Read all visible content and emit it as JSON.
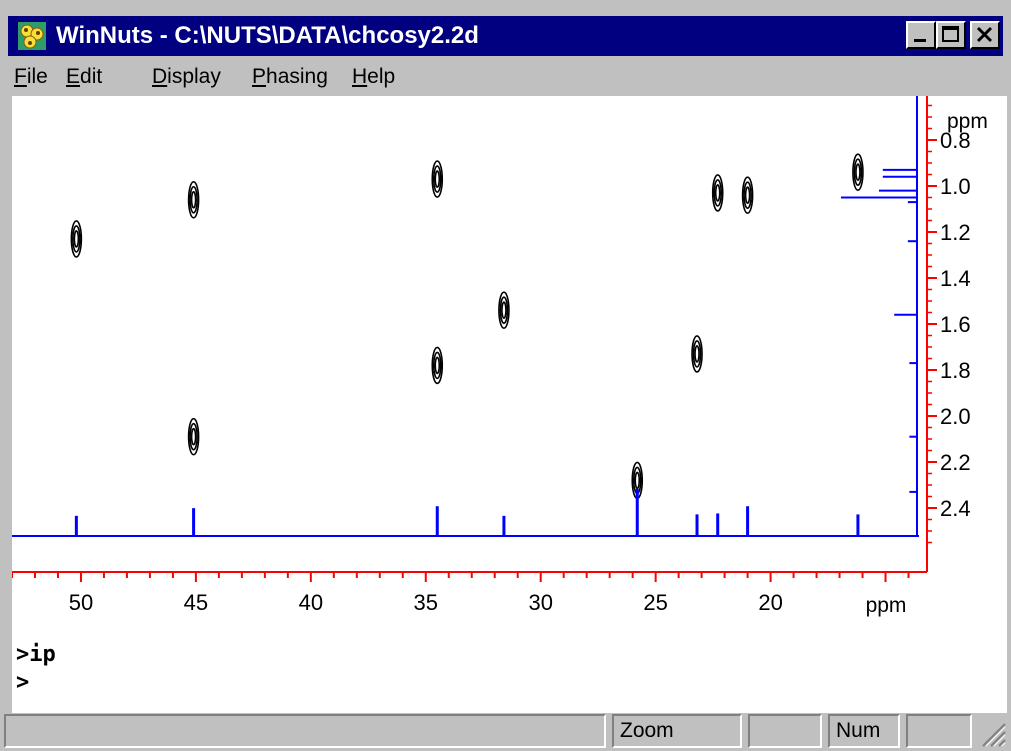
{
  "window": {
    "title": "WinNuts - C:\\NUTS\\DATA\\chcosy2.2d",
    "app_icon": "winnuts-app-icon",
    "controls": [
      "minimize-icon",
      "maximize-icon",
      "close-icon"
    ]
  },
  "menu": {
    "items": [
      {
        "key": "F",
        "rest": "ile"
      },
      {
        "key": "E",
        "rest": "dit"
      },
      {
        "key": "D",
        "rest": "isplay"
      },
      {
        "key": "P",
        "rest": "hasing"
      },
      {
        "key": "H",
        "rest": "elp"
      }
    ]
  },
  "chart_data": {
    "type": "contour",
    "x_axis": {
      "label": "ppm",
      "reversed": true,
      "range": [
        53.0,
        13.5
      ],
      "ticks": [
        50,
        45,
        40,
        35,
        30,
        25,
        20
      ],
      "tick_labels": [
        "50",
        "45",
        "40",
        "35",
        "30",
        "25",
        "20"
      ],
      "minor_step": 1
    },
    "y_axis": {
      "label": "ppm",
      "range": [
        0.62,
        2.56
      ],
      "ticks": [
        0.8,
        1.0,
        1.2,
        1.4,
        1.6,
        1.8,
        2.0,
        2.2,
        2.4
      ],
      "tick_labels": [
        "0.8",
        "1.0",
        "1.2",
        "1.4",
        "1.6",
        "1.8",
        "2.0",
        "2.2",
        "2.4"
      ],
      "minor_step": 0.05
    },
    "cross_peaks": [
      {
        "x": 50.2,
        "y": 1.23
      },
      {
        "x": 45.1,
        "y": 1.06
      },
      {
        "x": 45.1,
        "y": 2.09
      },
      {
        "x": 34.5,
        "y": 0.97
      },
      {
        "x": 34.5,
        "y": 1.78
      },
      {
        "x": 31.6,
        "y": 1.54
      },
      {
        "x": 25.8,
        "y": 2.28
      },
      {
        "x": 23.2,
        "y": 1.73
      },
      {
        "x": 22.3,
        "y": 1.03
      },
      {
        "x": 21.0,
        "y": 1.04
      },
      {
        "x": 16.2,
        "y": 0.94
      }
    ],
    "projection_13c": [
      {
        "x": 50.2,
        "h": 0.42
      },
      {
        "x": 45.1,
        "h": 0.58
      },
      {
        "x": 34.5,
        "h": 0.62
      },
      {
        "x": 31.6,
        "h": 0.42
      },
      {
        "x": 25.8,
        "h": 0.98
      },
      {
        "x": 23.2,
        "h": 0.45
      },
      {
        "x": 22.3,
        "h": 0.47
      },
      {
        "x": 21.0,
        "h": 0.62
      },
      {
        "x": 16.2,
        "h": 0.45
      }
    ],
    "projection_1h": [
      {
        "y": 0.93,
        "h": 0.45
      },
      {
        "y": 0.96,
        "h": 0.45
      },
      {
        "y": 1.02,
        "h": 0.5
      },
      {
        "y": 1.05,
        "h": 1.0
      },
      {
        "y": 1.07,
        "h": 0.12
      },
      {
        "y": 1.24,
        "h": 0.12
      },
      {
        "y": 1.56,
        "h": 0.3
      },
      {
        "y": 1.77,
        "h": 0.1
      },
      {
        "y": 2.09,
        "h": 0.1
      },
      {
        "y": 2.33,
        "h": 0.1
      }
    ],
    "colors": {
      "axis": "#ff0000",
      "projection": "#0000ff",
      "contour": "#000000"
    }
  },
  "command": {
    "lines": [
      ">ip",
      ">"
    ]
  },
  "status": {
    "panels": [
      "",
      "Zoom",
      "",
      "Num",
      ""
    ]
  }
}
